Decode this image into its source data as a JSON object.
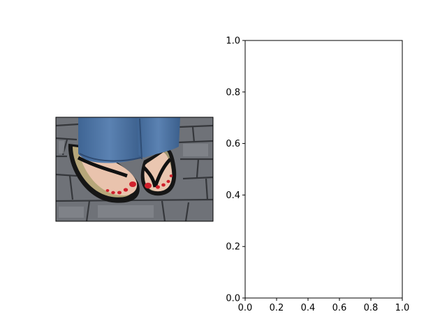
{
  "figure": {
    "background": "#ffffff"
  },
  "photo_panel": {
    "subject": "feet in black flip-flop sandals with red painted toenails, blue jeans hems, grey cobblestone pavement",
    "colors": {
      "pavement": "#6f7278",
      "pavement_dark": "#3a3c40",
      "jeans": "#4a6f9e",
      "skin": "#e9c3ad",
      "sandal": "#161616",
      "sole_straw": "#b7a77a",
      "toenail": "#d0202c"
    }
  },
  "chart_data": {
    "type": "scatter",
    "title": "",
    "xlabel": "",
    "ylabel": "",
    "xlim": [
      0.0,
      1.0
    ],
    "ylim": [
      0.0,
      1.0
    ],
    "xticks": [
      "0.0",
      "0.2",
      "0.4",
      "0.6",
      "0.8",
      "1.0"
    ],
    "yticks": [
      "0.0",
      "0.2",
      "0.4",
      "0.6",
      "0.8",
      "1.0"
    ],
    "series": [],
    "grid": false,
    "legend": "none"
  }
}
